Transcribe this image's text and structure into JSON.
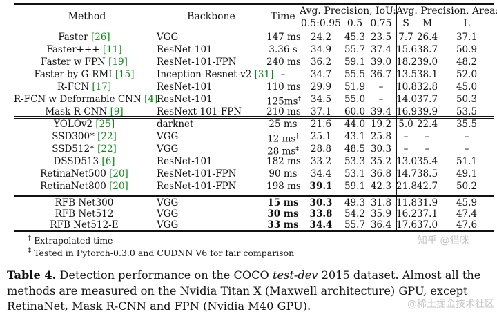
{
  "header": {
    "method": "Method",
    "backbone": "Backbone",
    "time": "Time",
    "ap_iou": "Avg. Precision, IoU:",
    "ap_area": "Avg. Precision, Area:",
    "sub": [
      "0.5:0.95",
      "0.5",
      "0.75",
      "S",
      "M",
      "L"
    ]
  },
  "rows": [
    {
      "method": "Faster",
      "ref": "[26]",
      "backbone": "VGG",
      "time": "147 ms",
      "ap": "24.2",
      "ap50": "45.3",
      "ap75": "23.5",
      "s": "7.7",
      "m": "26.4",
      "l": "37.1"
    },
    {
      "method": "Faster+++",
      "ref": "[11]",
      "backbone": "ResNet-101",
      "time": "3.36 s",
      "ap": "34.9",
      "ap50": "55.7",
      "ap75": "37.4",
      "s": "15.6",
      "m": "38.7",
      "l": "50.9"
    },
    {
      "method": "Faster w FPN",
      "ref": "[19]",
      "backbone": "ResNet-101-FPN",
      "time": "240 ms",
      "ap": "36.2",
      "ap50": "59.1",
      "ap75": "39.0",
      "s": "18.2",
      "m": "39.0",
      "l": "48.2"
    },
    {
      "method": "Faster by G-RMI",
      "ref": "[15]",
      "backbone": "Inception-Resnet-v2",
      "bref": "[31]",
      "time": "–",
      "ap": "34.7",
      "ap50": "55.5",
      "ap75": "36.7",
      "s": "13.5",
      "m": "38.1",
      "l": "52.0"
    },
    {
      "method": "R-FCN",
      "ref": "[17]",
      "backbone": "ResNet-101",
      "time": "110 ms",
      "ap": "29.9",
      "ap50": "51.9",
      "ap75": "–",
      "s": "10.8",
      "m": "32.8",
      "l": "45.0"
    },
    {
      "method": "R-FCN w Deformable CNN",
      "ref": "[4]",
      "backbone": "ResNet-101",
      "time": "125ms",
      "tmark": "†",
      "ap": "34.5",
      "ap50": "55.0",
      "ap75": "–",
      "s": "14.0",
      "m": "37.7",
      "l": "50.3"
    },
    {
      "method": "Mask R-CNN",
      "ref": "[9]",
      "backbone": "ResNext-101-FPN",
      "time": "210 ms",
      "ap": "37.1",
      "ap50": "60.0",
      "ap75": "39.4",
      "s": "16.9",
      "m": "39.9",
      "l": "53.5"
    },
    {
      "method": "YOLOv2",
      "ref": "[25]",
      "backbone": "darknet",
      "time": "25 ms",
      "ap": "21.6",
      "ap50": "44.0",
      "ap75": "19.2",
      "s": "5.0",
      "m": "22.4",
      "l": "35.5"
    },
    {
      "method": "SSD300*",
      "ref": "[22]",
      "backbone": "VGG",
      "time": "12 ms",
      "tmark": "‡",
      "ap": "25.1",
      "ap50": "43.1",
      "ap75": "25.8",
      "s": "–",
      "m": "–",
      "l": "–"
    },
    {
      "method": "SSD512*",
      "ref": "[22]",
      "backbone": "VGG",
      "time": "28 ms",
      "tmark": "‡",
      "ap": "28.8",
      "ap50": "48.5",
      "ap75": "30.3",
      "s": "–",
      "m": "–",
      "l": "–"
    },
    {
      "method": "DSSD513",
      "ref": "[6]",
      "backbone": "ResNet-101",
      "time": "182 ms",
      "ap": "33.2",
      "ap50": "53.3",
      "ap75": "35.2",
      "s": "13.0",
      "m": "35.4",
      "l": "51.1"
    },
    {
      "method": "RetinaNet500",
      "ref": "[20]",
      "backbone": "ResNet-101-FPN",
      "time": "90 ms",
      "ap": "34.4",
      "ap50": "53.1",
      "ap75": "36.8",
      "s": "14.7",
      "m": "38.5",
      "l": "49.1"
    },
    {
      "method": "RetinaNet800",
      "ref": "[20]",
      "backbone": "ResNet-101-FPN",
      "time": "198 ms",
      "ap": "39.1",
      "ap50": "59.1",
      "ap75": "42.3",
      "s": "21.8",
      "m": "42.7",
      "l": "50.2",
      "bold_ap": true
    },
    {
      "method": "RFB Net300",
      "ref": "",
      "backbone": "VGG",
      "time": "15 ms",
      "ap": "30.3",
      "ap50": "49.3",
      "ap75": "31.8",
      "s": "11.8",
      "m": "31.9",
      "l": "45.9",
      "bold_time": true,
      "bold_ap": true
    },
    {
      "method": "RFB Net512",
      "ref": "",
      "backbone": "VGG",
      "time": "30 ms",
      "ap": "33.8",
      "ap50": "54.2",
      "ap75": "35.9",
      "s": "16.2",
      "m": "37.1",
      "l": "47.4",
      "bold_time": true,
      "bold_ap": true
    },
    {
      "method": "RFB Net512-E",
      "ref": "",
      "backbone": "VGG",
      "time": "33 ms",
      "ap": "34.4",
      "ap50": "55.7",
      "ap75": "36.4",
      "s": "17.6",
      "m": "37.0",
      "l": "47.6",
      "bold_time": true,
      "bold_ap": true
    }
  ],
  "notes": {
    "n1": "Extrapolated time",
    "n1_mark": "†",
    "n2": "Tested in Pytorch-0.3.0 and CUDNN V6 for fair comparison",
    "n2_mark": "‡"
  },
  "caption": {
    "label": "Table 4.",
    "text_a": " Detection performance on the COCO ",
    "italic": "test-dev",
    "text_b": " 2015 dataset. Almost all the methods are measured on the Nvidia Titan X (Maxwell architecture) GPU, except RetinaNet, Mask R-CNN and FPN (Nvidia M40 GPU)."
  },
  "watermark": {
    "top": "知乎 @猫咪",
    "bottom": "@稀土掘金技术社区"
  }
}
